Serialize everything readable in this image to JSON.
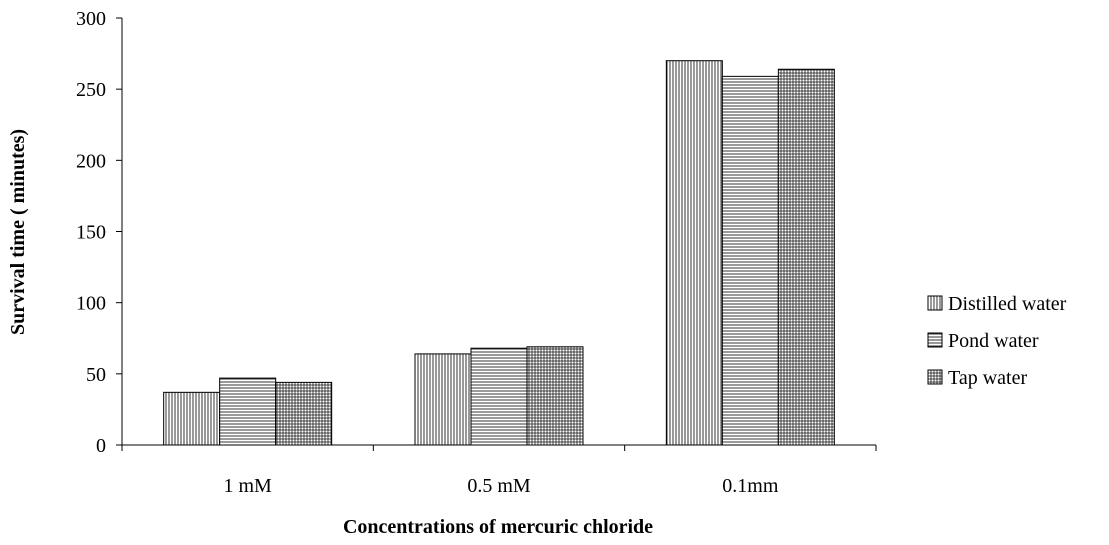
{
  "chart_data": {
    "type": "bar",
    "title": "",
    "xlabel": "Concentrations of mercuric chloride",
    "ylabel": "Survival time ( minutes)",
    "ylim": [
      0,
      300
    ],
    "yticks": [
      0,
      50,
      100,
      150,
      200,
      250,
      300
    ],
    "categories": [
      "1 mM",
      "0.5 mM",
      "0.1mm"
    ],
    "series": [
      {
        "name": "Distilled water",
        "pattern": "vertical-lines",
        "values": [
          37,
          64,
          270
        ]
      },
      {
        "name": "Pond water",
        "pattern": "horizontal-lines",
        "values": [
          47,
          68,
          259
        ]
      },
      {
        "name": "Tap water",
        "pattern": "grid",
        "values": [
          44,
          69,
          264
        ]
      }
    ],
    "legend_position": "right",
    "grid": false
  }
}
